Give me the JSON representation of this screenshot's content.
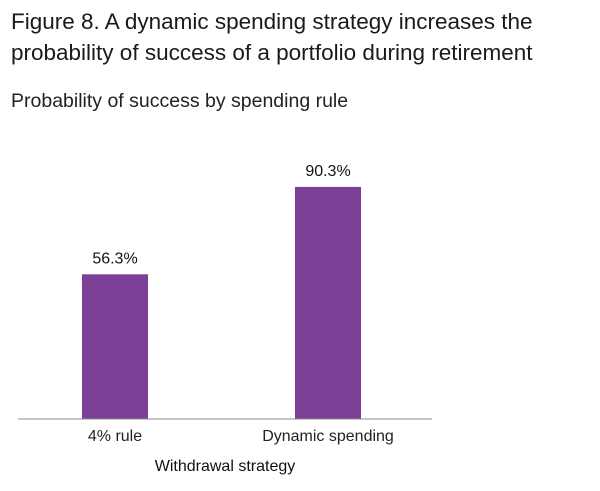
{
  "figure_title": "Figure 8. A dynamic spending strategy increases the probability of success of a portfolio during retirement",
  "chart_data": {
    "type": "bar",
    "title": "Figure 8. A dynamic spending strategy increases the probability of success of a portfolio during retirement",
    "subtitle": "Probability of success by spending rule",
    "categories": [
      "4% rule",
      "Dynamic spending"
    ],
    "values": [
      56.3,
      90.3
    ],
    "data_labels": [
      "56.3%",
      "90.3%"
    ],
    "xlabel": "Withdrawal strategy",
    "ylabel": "",
    "ylim": [
      0,
      100
    ],
    "grid": false,
    "bar_color": "#7b3f96"
  }
}
